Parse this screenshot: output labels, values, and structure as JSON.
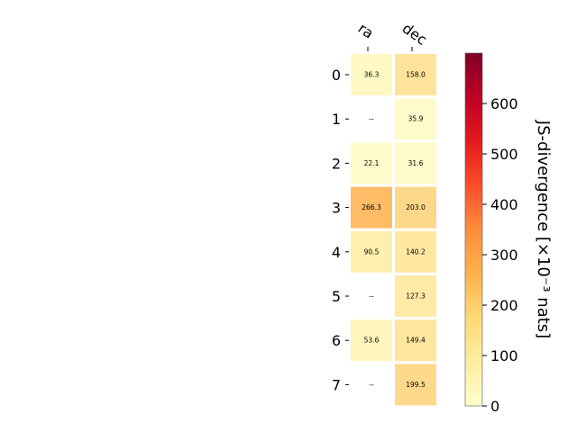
{
  "chart_data": {
    "type": "heatmap",
    "columns": [
      "ra",
      "dec"
    ],
    "rows": [
      "0",
      "1",
      "2",
      "3",
      "4",
      "5",
      "6",
      "7"
    ],
    "values": [
      [
        36.3,
        158.0
      ],
      [
        null,
        35.9
      ],
      [
        22.1,
        31.6
      ],
      [
        266.3,
        203.0
      ],
      [
        90.5,
        140.2
      ],
      [
        null,
        127.3
      ],
      [
        53.6,
        149.4
      ],
      [
        null,
        199.5
      ]
    ],
    "cell_labels": [
      [
        "36.3",
        "158.0"
      ],
      [
        "--",
        "35.9"
      ],
      [
        "22.1",
        "31.6"
      ],
      [
        "266.3",
        "203.0"
      ],
      [
        "90.5",
        "140.2"
      ],
      [
        "--",
        "127.3"
      ],
      [
        "53.6",
        "149.4"
      ],
      [
        "--",
        "199.5"
      ]
    ],
    "colorbar": {
      "label": "JS-divergence [×10⁻³ nats]",
      "range": [
        0,
        700
      ],
      "ticks": [
        "0",
        "100",
        "200",
        "300",
        "400",
        "500",
        "600"
      ],
      "colormap": "YlOrRd"
    }
  }
}
